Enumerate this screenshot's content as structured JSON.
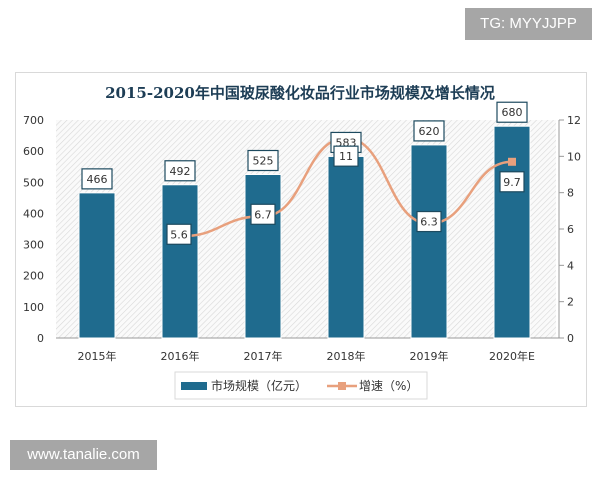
{
  "watermarks": {
    "top": "TG: MYYJJPP",
    "bottom": "www.tanalie.com"
  },
  "chart_data": {
    "type": "bar+line",
    "title": "2015-2020年中国玻尿酸化妆品行业市场规模及增长情况",
    "categories": [
      "2015年",
      "2016年",
      "2017年",
      "2018年",
      "2019年",
      "2020年E"
    ],
    "series": [
      {
        "name": "市场规模（亿元）",
        "type": "bar",
        "axis": "left",
        "values": [
          466,
          492,
          525,
          583,
          620,
          680
        ],
        "color": "#1f6b8e"
      },
      {
        "name": "增速（%）",
        "type": "line",
        "axis": "right",
        "values": [
          null,
          5.6,
          6.7,
          11,
          6.3,
          9.7
        ],
        "color": "#e8a07d"
      }
    ],
    "y_left": {
      "range": [
        0,
        700
      ],
      "ticks": [
        0,
        100,
        200,
        300,
        400,
        500,
        600,
        700
      ]
    },
    "y_right": {
      "range": [
        0,
        12
      ],
      "ticks": [
        0,
        2,
        4,
        6,
        8,
        10,
        12
      ]
    },
    "legend": "bottom"
  }
}
